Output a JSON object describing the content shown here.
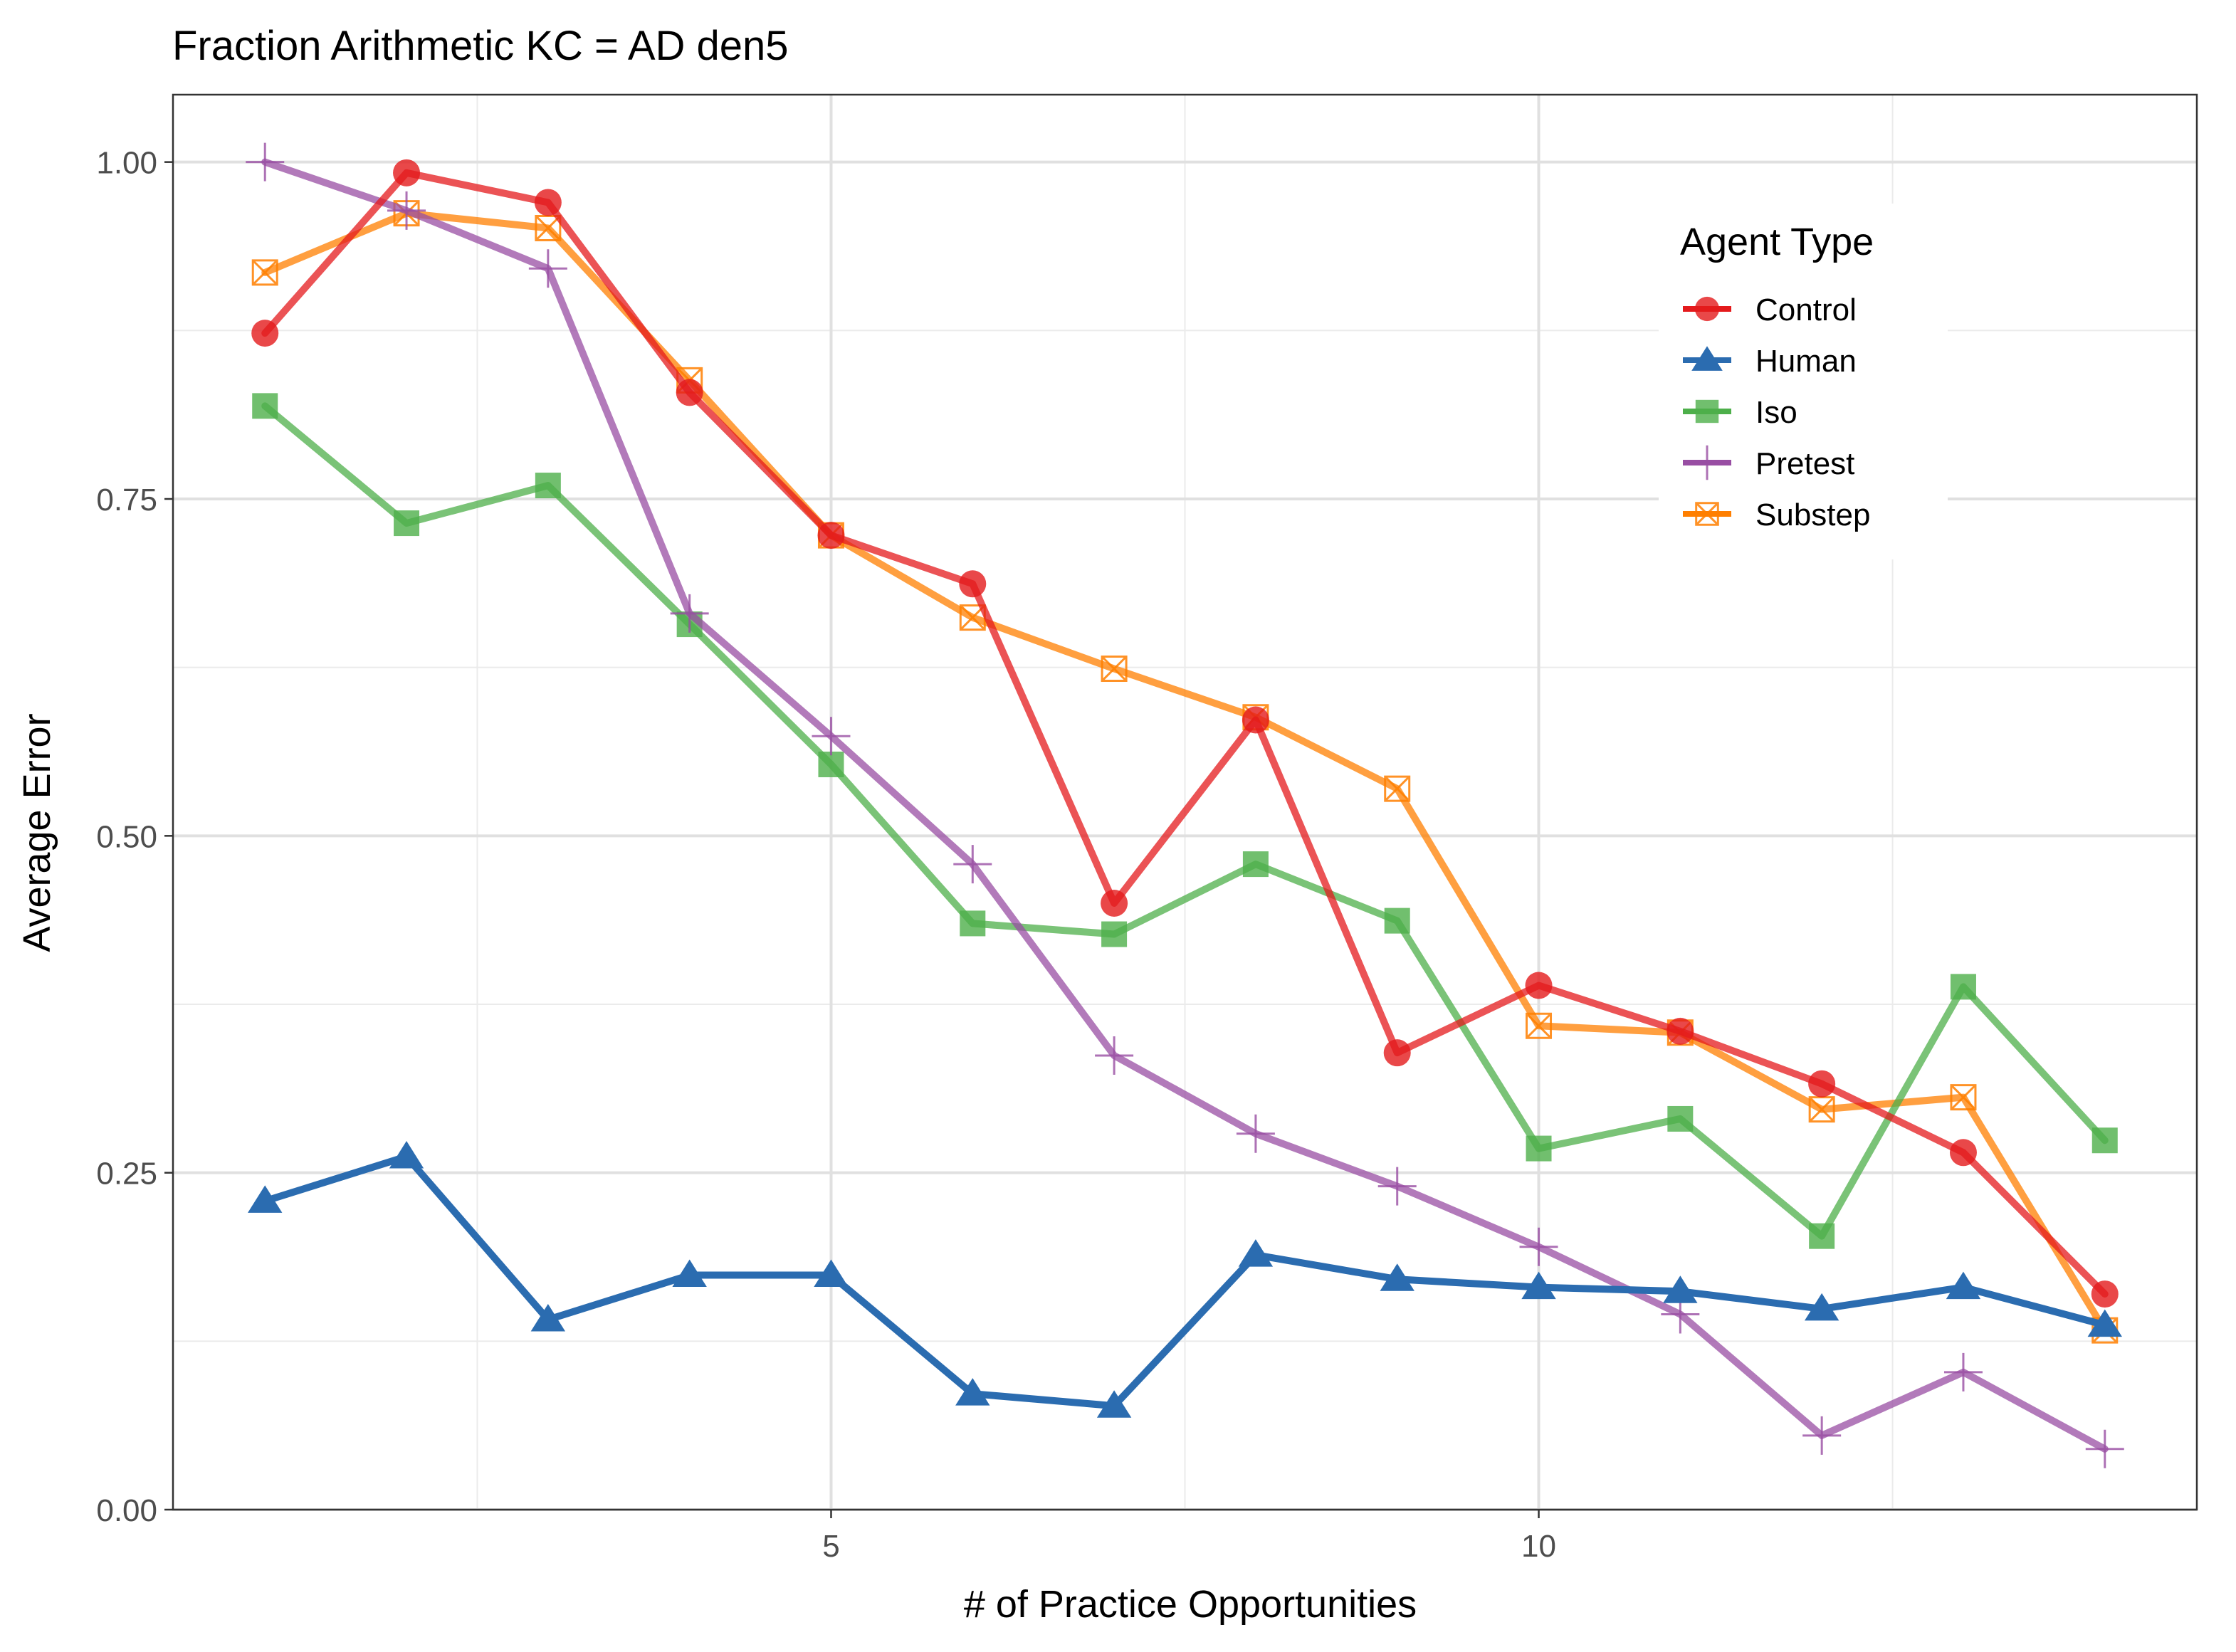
{
  "chart_data": {
    "type": "line",
    "title": "Fraction Arithmetic KC =  AD den5",
    "xlabel": "# of Practice Opportunities",
    "ylabel": "Average Error",
    "xlim": [
      0.35,
      14.65
    ],
    "ylim": [
      0,
      1.05
    ],
    "x_ticks": [
      5,
      10
    ],
    "x_tick_labels": [
      "5",
      "10"
    ],
    "x_minor_ticks": [
      2.5,
      7.5,
      12.5
    ],
    "y_ticks": [
      0,
      0.25,
      0.5,
      0.75,
      1.0
    ],
    "y_tick_labels": [
      "0.00",
      "0.25",
      "0.50",
      "0.75",
      "1.00"
    ],
    "y_minor_ticks": [
      0.125,
      0.375,
      0.625,
      0.875
    ],
    "grid": true,
    "legend": {
      "title": "Agent Type",
      "placement": "top-right"
    },
    "x": [
      1,
      2,
      3,
      4,
      5,
      6,
      7,
      8,
      9,
      10,
      11,
      12,
      13,
      14
    ],
    "series": [
      {
        "name": "Control",
        "color": "#e41a1c",
        "marker": "circle",
        "values": [
          0.873,
          0.992,
          0.97,
          0.829,
          0.723,
          0.687,
          0.45,
          0.586,
          0.339,
          0.389,
          0.355,
          0.316,
          0.265,
          0.16
        ]
      },
      {
        "name": "Human",
        "color": "#2b6cb0",
        "marker": "triangle",
        "values": [
          0.229,
          0.262,
          0.141,
          0.174,
          0.174,
          0.086,
          0.077,
          0.189,
          0.171,
          0.165,
          0.162,
          0.149,
          0.165,
          0.137
        ]
      },
      {
        "name": "Iso",
        "color": "#4daf4a",
        "marker": "square",
        "values": [
          0.819,
          0.732,
          0.76,
          0.657,
          0.553,
          0.435,
          0.427,
          0.479,
          0.437,
          0.268,
          0.29,
          0.203,
          0.388,
          0.274
        ]
      },
      {
        "name": "Pretest",
        "color": "#984ea3",
        "marker": "plus",
        "values": [
          1.0,
          0.964,
          0.921,
          0.665,
          0.574,
          0.479,
          0.337,
          0.279,
          0.24,
          0.195,
          0.145,
          0.055,
          0.102,
          0.045
        ]
      },
      {
        "name": "Substep",
        "color": "#ff7f00",
        "marker": "crossbox",
        "values": [
          0.918,
          0.962,
          0.951,
          0.838,
          0.723,
          0.662,
          0.624,
          0.588,
          0.535,
          0.359,
          0.354,
          0.297,
          0.306,
          0.133
        ]
      }
    ]
  }
}
